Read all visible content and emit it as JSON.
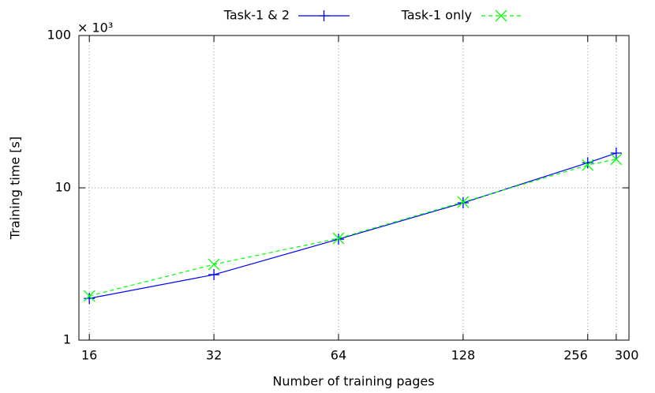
{
  "chart_data": {
    "type": "line",
    "x_label": "Number of training pages",
    "y_label": "Training time [s]",
    "y_multiplier": "× 10³",
    "x": [
      16,
      32,
      64,
      128,
      256,
      300
    ],
    "series": [
      {
        "name": "Task-1 & 2",
        "color": "#0000ff",
        "marker": "plus",
        "dashed": false,
        "values": [
          1.88,
          2.69,
          4.6,
          7.97,
          14.6,
          16.9
        ]
      },
      {
        "name": "Task-1 only",
        "color": "#00ff00",
        "marker": "cross",
        "dashed": true,
        "values": [
          1.95,
          3.14,
          4.66,
          8.07,
          14.1,
          15.4
        ]
      }
    ],
    "xlim": [
      15.1,
      322
    ],
    "xticks": [
      16,
      32,
      64,
      128,
      256,
      300
    ],
    "xlog": true,
    "ylim": [
      1,
      100
    ],
    "yticks": [
      1,
      10,
      100
    ],
    "ylog": true,
    "grid": true,
    "legend": "top"
  }
}
